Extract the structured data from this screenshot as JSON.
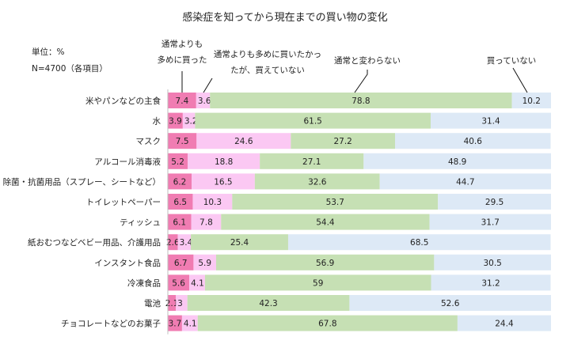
{
  "chart_data": {
    "type": "bar",
    "orientation": "horizontal",
    "stacked": true,
    "percent_scale": true,
    "title": "感染症を知ってから現在までの買い物の変化",
    "unit_label": "単位：%",
    "n_label": "N=4700（各項目）",
    "categories": [
      "米やパンなどの主食",
      "水",
      "マスク",
      "アルコール消毒液",
      "除菌・抗菌用品（スプレー、シートなど）",
      "トイレットペーパー",
      "ティッシュ",
      "紙おむつなどベビー用品、介護用品",
      "インスタント食品",
      "冷凍食品",
      "電池",
      "チョコレートなどのお菓子"
    ],
    "series": [
      {
        "name_lines": [
          "通常よりも",
          "多めに買った"
        ],
        "color": "#f07cb2",
        "values": [
          7.4,
          3.9,
          7.5,
          5.2,
          6.2,
          6.5,
          6.1,
          2.6,
          6.7,
          5.6,
          2.1,
          3.7
        ]
      },
      {
        "name_lines": [
          "通常よりも多めに買いたかっ",
          "たが、買えていない"
        ],
        "color": "#fbc8f3",
        "values": [
          3.6,
          3.2,
          24.6,
          18.8,
          16.5,
          10.3,
          7.8,
          3.4,
          5.9,
          4.1,
          3.0,
          4.1
        ]
      },
      {
        "name_lines": [
          "通常と変わらない"
        ],
        "color": "#c6e0b4",
        "values": [
          78.8,
          61.5,
          27.2,
          27.1,
          32.6,
          53.7,
          54.4,
          25.4,
          56.9,
          59.0,
          42.3,
          67.8
        ]
      },
      {
        "name_lines": [
          "買っていない"
        ],
        "color": "#dde9f6",
        "values": [
          10.2,
          31.4,
          40.6,
          48.9,
          44.7,
          29.5,
          31.7,
          68.5,
          30.5,
          31.2,
          52.6,
          24.4
        ]
      }
    ],
    "xlim": [
      0,
      100
    ],
    "legend": "callouts above bars"
  }
}
